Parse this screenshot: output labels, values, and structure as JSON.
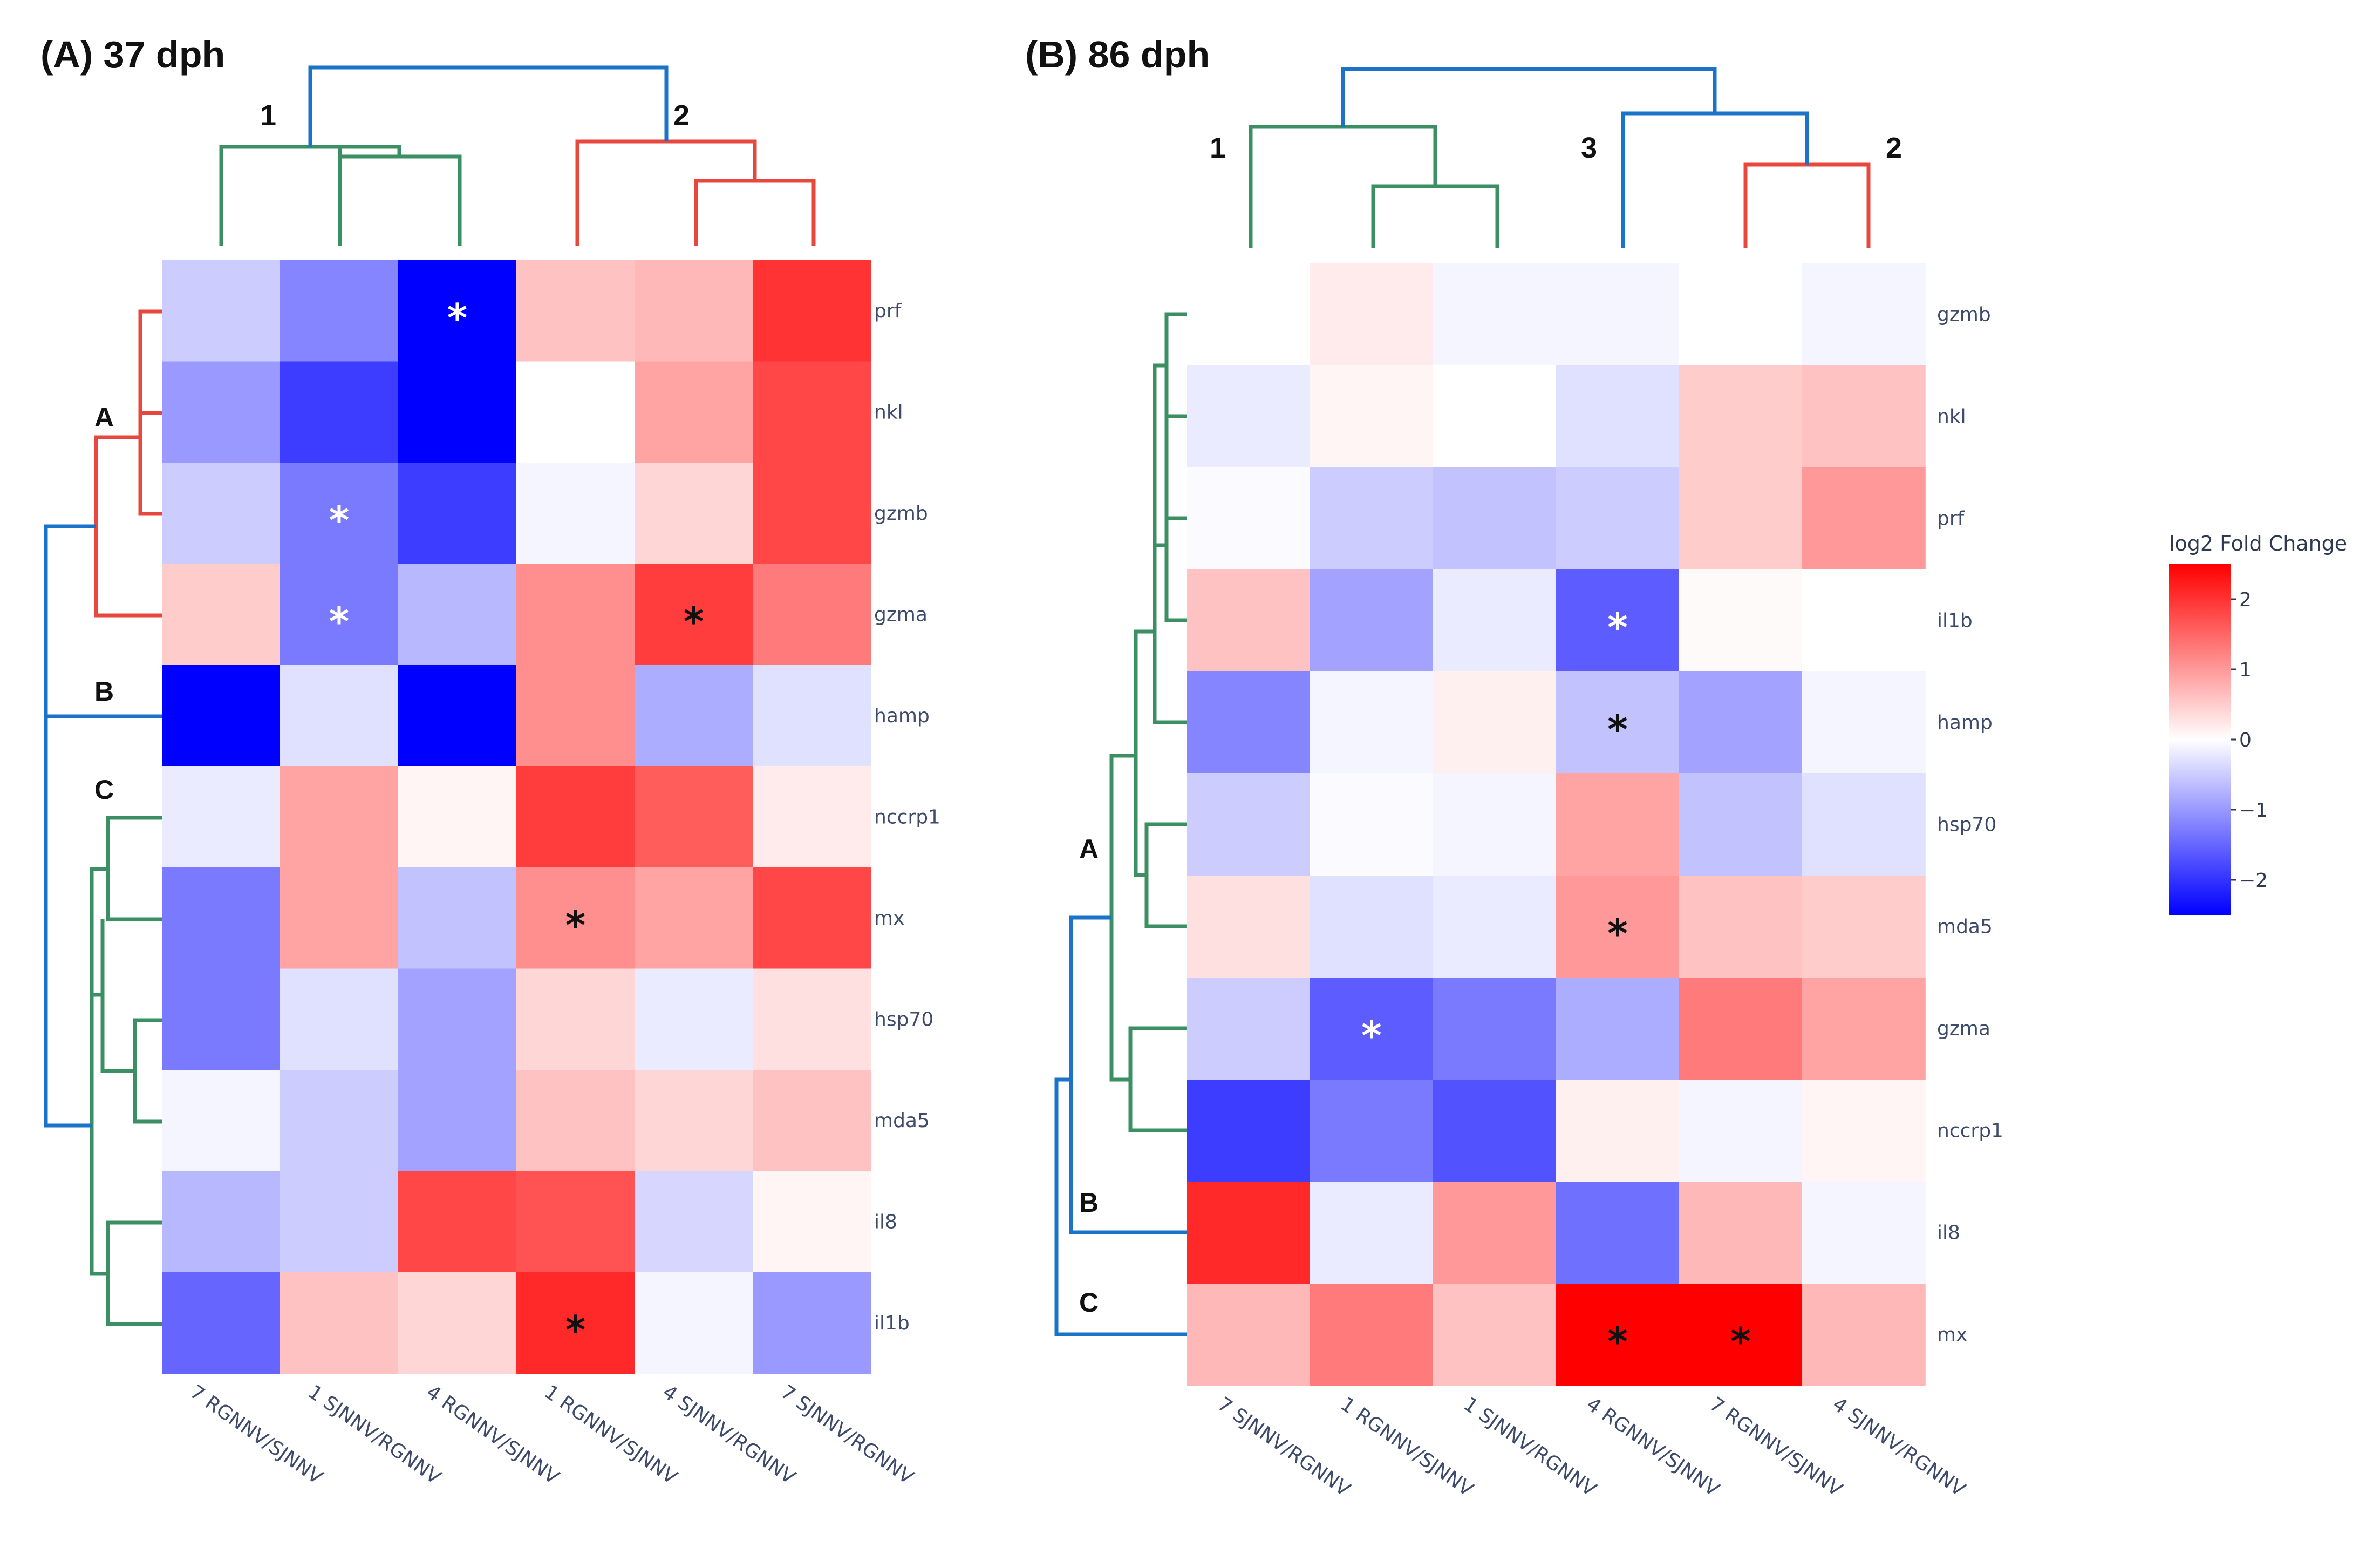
{
  "chart_data": [
    {
      "type": "heatmap",
      "title": "(A) 37 dph",
      "columns": [
        "7 RGNNV/SJNNV",
        "1 SJNNV/RGNNV",
        "4 RGNNV/SJNNV",
        "1 RGNNV/SJNNV",
        "4 SJNNV/RGNNV",
        "7 SJNNV/RGNNV"
      ],
      "rows": [
        "prf",
        "nkl",
        "gzmb",
        "gzma",
        "hamp",
        "nccrp1",
        "mx",
        "hsp70",
        "mda5",
        "il8",
        "il1b"
      ],
      "values": [
        [
          -0.5,
          -1.2,
          -2.5,
          0.6,
          0.7,
          2.0
        ],
        [
          -1.0,
          -1.9,
          -2.5,
          0.0,
          0.9,
          1.8
        ],
        [
          -0.5,
          -1.3,
          -1.9,
          -0.1,
          0.4,
          1.8
        ],
        [
          0.5,
          -1.3,
          -0.7,
          1.1,
          1.9,
          1.3
        ],
        [
          -2.5,
          -0.3,
          -2.5,
          1.1,
          -0.8,
          -0.3
        ],
        [
          -0.2,
          0.9,
          0.1,
          1.9,
          1.6,
          0.2
        ],
        [
          -1.3,
          0.9,
          -0.6,
          1.1,
          0.9,
          1.8
        ],
        [
          -1.3,
          -0.3,
          -0.9,
          0.4,
          -0.2,
          0.3
        ],
        [
          -0.1,
          -0.5,
          -0.9,
          0.6,
          0.4,
          0.6
        ],
        [
          -0.7,
          -0.5,
          1.8,
          1.7,
          -0.4,
          0.1
        ],
        [
          -1.5,
          0.6,
          0.4,
          2.1,
          -0.1,
          -1.0
        ]
      ],
      "significant": [
        {
          "row": "prf",
          "col": "4 RGNNV/SJNNV",
          "color": "white"
        },
        {
          "row": "gzmb",
          "col": "1 SJNNV/RGNNV",
          "color": "white"
        },
        {
          "row": "gzma",
          "col": "1 SJNNV/RGNNV",
          "color": "white"
        },
        {
          "row": "gzma",
          "col": "4 SJNNV/RGNNV",
          "color": "black"
        },
        {
          "row": "mx",
          "col": "1 RGNNV/SJNNV",
          "color": "black"
        },
        {
          "row": "il1b",
          "col": "1 RGNNV/SJNNV",
          "color": "black"
        }
      ],
      "column_clusters": [
        "1",
        "2"
      ],
      "row_clusters": [
        "A",
        "B",
        "C"
      ],
      "sig_marker": "*"
    },
    {
      "type": "heatmap",
      "title": "(B) 86 dph",
      "columns": [
        "7 SJNNV/RGNNV",
        "1 RGNNV/SJNNV",
        "1 SJNNV/RGNNV",
        "4 RGNNV/SJNNV",
        "7 RGNNV/SJNNV",
        "4 SJNNV/RGNNV"
      ],
      "rows": [
        "gzmb",
        "nkl",
        "prf",
        "il1b",
        "hamp",
        "hsp70",
        "mda5",
        "gzma",
        "nccrp1",
        "il8",
        "mx"
      ],
      "values": [
        [
          0.0,
          0.2,
          -0.1,
          -0.1,
          0.0,
          -0.1
        ],
        [
          -0.2,
          0.1,
          0.0,
          -0.3,
          0.5,
          0.6
        ],
        [
          -0.05,
          -0.5,
          -0.6,
          -0.5,
          0.5,
          1.0
        ],
        [
          0.6,
          -0.9,
          -0.2,
          -1.6,
          0.05,
          0.0
        ],
        [
          -1.2,
          -0.1,
          0.15,
          -0.6,
          -0.9,
          -0.1
        ],
        [
          -0.5,
          -0.05,
          -0.1,
          0.9,
          -0.6,
          -0.3
        ],
        [
          0.3,
          -0.3,
          -0.2,
          1.0,
          0.6,
          0.5
        ],
        [
          -0.5,
          -1.6,
          -1.3,
          -0.8,
          1.3,
          0.9
        ],
        [
          -1.9,
          -1.3,
          -1.7,
          0.15,
          -0.1,
          0.1
        ],
        [
          2.1,
          -0.2,
          1.0,
          -1.4,
          0.7,
          -0.1
        ],
        [
          0.7,
          1.3,
          0.6,
          2.5,
          2.5,
          0.7
        ]
      ],
      "significant": [
        {
          "row": "il1b",
          "col": "4 RGNNV/SJNNV",
          "color": "white"
        },
        {
          "row": "hamp",
          "col": "4 RGNNV/SJNNV",
          "color": "black"
        },
        {
          "row": "mda5",
          "col": "4 RGNNV/SJNNV",
          "color": "black"
        },
        {
          "row": "gzma",
          "col": "1 RGNNV/SJNNV",
          "color": "white"
        },
        {
          "row": "mx",
          "col": "4 RGNNV/SJNNV",
          "color": "black"
        },
        {
          "row": "mx",
          "col": "7 RGNNV/SJNNV",
          "color": "black"
        }
      ],
      "column_clusters": [
        "1",
        "3",
        "2"
      ],
      "row_clusters": [
        "A",
        "B",
        "C"
      ],
      "sig_marker": "*"
    }
  ],
  "colorbar": {
    "title": "log2 Fold Change",
    "zmin": -2.5,
    "zmax": 2.5,
    "ticks": [
      2,
      1,
      0,
      -1,
      -2
    ],
    "tick_labels": [
      "2",
      "1",
      "0",
      "−1",
      "−2"
    ]
  },
  "colors": {
    "low": "#0000ff",
    "mid": "#ffffff",
    "high": "#ff0000",
    "dendro_red": "#e8473e",
    "dendro_green": "#3b8f63",
    "dendro_blue": "#1a73c8"
  }
}
